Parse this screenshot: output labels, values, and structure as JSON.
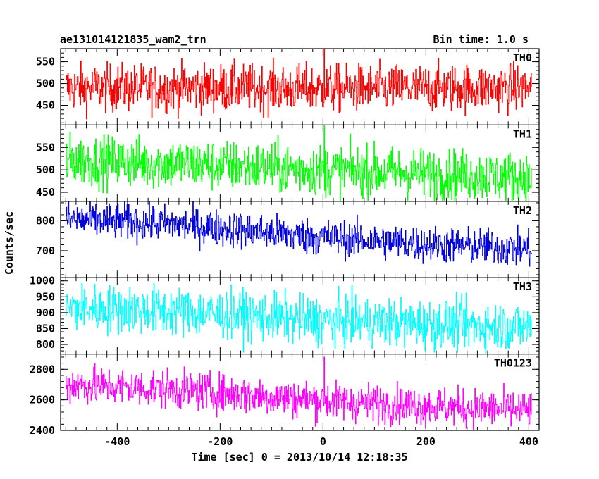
{
  "chart_data": {
    "type": "line",
    "title_left": "ae131014121835_wam2_trn",
    "title_right": "Bin time: 1.0 s",
    "xlabel": "Time [sec] 0 = 2013/10/14 12:18:35",
    "ylabel": "Counts/sec",
    "xlim": [
      -510,
      420
    ],
    "x_ticks": [
      -400,
      -200,
      0,
      200,
      400
    ],
    "bin_time_s": 1.0,
    "x_start": -500,
    "x_end": 405,
    "panels": [
      {
        "name": "TH0",
        "color": "#ff0000",
        "ylim": [
          405,
          580
        ],
        "y_ticks": [
          450,
          500,
          550
        ],
        "trend": [
          [
            -500,
            490
          ],
          [
            -200,
            490
          ],
          [
            0,
            488
          ],
          [
            200,
            490
          ],
          [
            405,
            490
          ]
        ],
        "noise_sigma": 27,
        "spike": {
          "x": 2,
          "y": 580
        }
      },
      {
        "name": "TH1",
        "color": "#00ff00",
        "ylim": [
          430,
          600
        ],
        "y_ticks": [
          450,
          500,
          550
        ],
        "trend": [
          [
            -500,
            522
          ],
          [
            -200,
            510
          ],
          [
            0,
            500
          ],
          [
            200,
            492
          ],
          [
            405,
            482
          ]
        ],
        "noise_sigma": 28,
        "spike": {
          "x": 2,
          "y": 600
        }
      },
      {
        "name": "TH2",
        "color": "#0000e0",
        "ylim": [
          610,
          865
        ],
        "y_ticks": [
          700,
          800
        ],
        "trend": [
          [
            -500,
            805
          ],
          [
            -300,
            790
          ],
          [
            -100,
            760
          ],
          [
            0,
            745
          ],
          [
            200,
            722
          ],
          [
            405,
            705
          ]
        ],
        "noise_sigma": 30,
        "spike": null
      },
      {
        "name": "TH3",
        "color": "#00ffff",
        "ylim": [
          770,
          1010
        ],
        "y_ticks": [
          800,
          850,
          900,
          950,
          1000
        ],
        "trend": [
          [
            -500,
            915
          ],
          [
            -300,
            905
          ],
          [
            -100,
            885
          ],
          [
            0,
            875
          ],
          [
            200,
            865
          ],
          [
            405,
            855
          ]
        ],
        "noise_sigma": 38,
        "spike": null
      },
      {
        "name": "TH0123",
        "color": "#ff00ff",
        "ylim": [
          2400,
          2900
        ],
        "y_ticks": [
          2400,
          2600,
          2800
        ],
        "trend": [
          [
            -500,
            2700
          ],
          [
            -300,
            2670
          ],
          [
            -100,
            2620
          ],
          [
            0,
            2595
          ],
          [
            200,
            2560
          ],
          [
            405,
            2530
          ]
        ],
        "noise_sigma": 62,
        "spike": {
          "x": 2,
          "y": 2880
        }
      }
    ]
  }
}
